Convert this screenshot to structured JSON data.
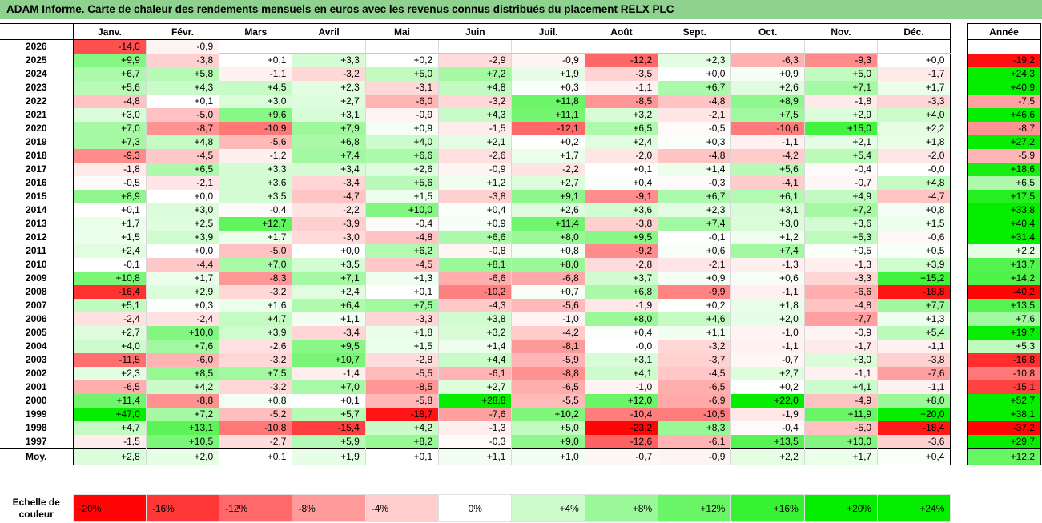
{
  "title": "ADAM Informe. Carte de chaleur des rendements mensuels en euros avec les revenus connus distribués du placement RELX PLC",
  "months": [
    "Janv.",
    "Févr.",
    "Mars",
    "Avril",
    "Mai",
    "Juin",
    "Juil.",
    "Août",
    "Sept.",
    "Oct.",
    "Nov.",
    "Déc."
  ],
  "annual_header": "Année",
  "avg_label": "Moy.",
  "scale_label": "Echelle de couleur",
  "chart_data": {
    "type": "heatmap",
    "title": "ADAM Informe. Carte de chaleur des rendements mensuels en euros avec les revenus connus distribués du placement RELX PLC",
    "x": [
      "Janv.",
      "Févr.",
      "Mars",
      "Avril",
      "Mai",
      "Juin",
      "Juil.",
      "Août",
      "Sept.",
      "Oct.",
      "Nov.",
      "Déc."
    ],
    "y": [
      "2026",
      "2025",
      "2024",
      "2023",
      "2022",
      "2021",
      "2020",
      "2019",
      "2018",
      "2017",
      "2016",
      "2015",
      "2014",
      "2013",
      "2012",
      "2011",
      "2010",
      "2009",
      "2008",
      "2007",
      "2006",
      "2005",
      "2004",
      "2003",
      "2002",
      "2001",
      "2000",
      "1999",
      "1998",
      "1997"
    ],
    "values": [
      [
        "-14,0",
        "-0,9",
        "",
        "",
        "",
        "",
        "",
        "",
        "",
        "",
        "",
        ""
      ],
      [
        "+9,9",
        "-3,8",
        "+0,1",
        "+3,3",
        "+0,2",
        "-2,9",
        "-0,9",
        "-12,2",
        "+2,3",
        "-6,3",
        "-9,3",
        "+0,0"
      ],
      [
        "+6,7",
        "+5,8",
        "-1,1",
        "-3,2",
        "+5,0",
        "+7,2",
        "+1,9",
        "-3,5",
        "+0,0",
        "+0,9",
        "+5,0",
        "-1,7"
      ],
      [
        "+5,6",
        "+4,3",
        "+4,5",
        "+2,3",
        "-3,1",
        "+4,8",
        "+0,3",
        "-1,1",
        "+6,7",
        "+2,6",
        "+7,1",
        "+1,7"
      ],
      [
        "-4,8",
        "+0,1",
        "+3,0",
        "+2,7",
        "-6,0",
        "-3,2",
        "+11,8",
        "-8,5",
        "-4,8",
        "+8,9",
        "-1,8",
        "-3,3"
      ],
      [
        "+3,0",
        "-5,0",
        "+9,6",
        "+3,1",
        "-0,9",
        "+4,3",
        "+11,1",
        "+3,2",
        "-2,1",
        "+7,5",
        "+2,9",
        "+4,0"
      ],
      [
        "+7,0",
        "-8,7",
        "-10,9",
        "+7,9",
        "+0,9",
        "-1,5",
        "-12,1",
        "+6,5",
        "-0,5",
        "-10,6",
        "+15,0",
        "+2,2"
      ],
      [
        "+7,3",
        "+4,8",
        "-5,6",
        "+6,8",
        "+4,0",
        "+2,1",
        "+0,2",
        "+2,4",
        "+0,3",
        "-1,1",
        "+2,1",
        "+1,8"
      ],
      [
        "-9,3",
        "-4,5",
        "-1,2",
        "+7,4",
        "+6,6",
        "-2,6",
        "+1,7",
        "-2,0",
        "-4,8",
        "-4,2",
        "+5,4",
        "-2,0"
      ],
      [
        "-1,8",
        "+6,5",
        "+3,3",
        "+3,4",
        "+2,6",
        "-0,9",
        "-2,2",
        "+0,1",
        "+1,4",
        "+5,6",
        "-0,4",
        "-0,0"
      ],
      [
        "-0,5",
        "-2,1",
        "+3,6",
        "-3,4",
        "+5,6",
        "+1,2",
        "+2,7",
        "+0,4",
        "-0,3",
        "-4,1",
        "-0,7",
        "+4,8"
      ],
      [
        "+8,9",
        "+0,0",
        "+3,5",
        "-4,7",
        "+1,5",
        "-3,8",
        "+9,1",
        "-9,1",
        "+6,7",
        "+6,1",
        "+4,9",
        "-4,7"
      ],
      [
        "+0,1",
        "+3,0",
        "-0,4",
        "-2,2",
        "+10,0",
        "+0,4",
        "+2,6",
        "+3,6",
        "+2,3",
        "+3,1",
        "+7,2",
        "+0,8"
      ],
      [
        "+1,7",
        "+2,5",
        "+12,7",
        "-3,9",
        "-0,4",
        "+0,9",
        "+11,4",
        "-3,8",
        "+7,4",
        "+3,0",
        "+3,6",
        "+1,5"
      ],
      [
        "+1,5",
        "+3,9",
        "+1,7",
        "-3,0",
        "-4,8",
        "+6,6",
        "+8,0",
        "+9,5",
        "-0,1",
        "+1,2",
        "+5,3",
        "-0,6"
      ],
      [
        "+2,4",
        "+0,0",
        "-5,0",
        "+0,0",
        "+6,2",
        "-0,8",
        "+0,8",
        "-9,2",
        "+0,6",
        "+7,4",
        "+0,5",
        "+0,5"
      ],
      [
        "-0,1",
        "-4,4",
        "+7,0",
        "+3,5",
        "-4,5",
        "+8,1",
        "+8,0",
        "-2,8",
        "-2,1",
        "-1,3",
        "-1,3",
        "+3,9"
      ],
      [
        "+10,8",
        "+1,7",
        "-8,3",
        "+7,1",
        "+1,3",
        "-6,6",
        "-6,8",
        "+3,7",
        "+0,9",
        "+0,6",
        "-3,3",
        "+15,2"
      ],
      [
        "-16,4",
        "+2,9",
        "-3,2",
        "+2,4",
        "+0,1",
        "-10,2",
        "+0,7",
        "+6,8",
        "-9,9",
        "-1,1",
        "-6,6",
        "-18,8"
      ],
      [
        "+5,1",
        "+0,3",
        "+1,6",
        "+6,4",
        "+7,5",
        "-4,3",
        "-5,6",
        "-1,9",
        "+0,2",
        "+1,8",
        "-4,8",
        "+7,7"
      ],
      [
        "-2,4",
        "-2,4",
        "+4,7",
        "+1,1",
        "-3,3",
        "+3,8",
        "-1,0",
        "+8,0",
        "+4,6",
        "+2,0",
        "-7,7",
        "+1,3"
      ],
      [
        "+2,7",
        "+10,0",
        "+3,9",
        "-3,4",
        "+1,8",
        "+3,2",
        "-4,2",
        "+0,4",
        "+1,1",
        "-1,0",
        "-0,9",
        "+5,4"
      ],
      [
        "+4,0",
        "+7,6",
        "-2,6",
        "+9,5",
        "+1,5",
        "+1,4",
        "-8,1",
        "-0,0",
        "-3,2",
        "-1,1",
        "-1,7",
        "-1,1"
      ],
      [
        "-11,5",
        "-6,0",
        "-3,2",
        "+10,7",
        "-2,8",
        "+4,4",
        "-5,9",
        "+3,1",
        "-3,7",
        "-0,7",
        "+3,0",
        "-3,8"
      ],
      [
        "+2,3",
        "+8,5",
        "+7,5",
        "-1,4",
        "-5,5",
        "-6,1",
        "-8,8",
        "+4,1",
        "-4,5",
        "+2,7",
        "-1,1",
        "-7,6"
      ],
      [
        "-6,5",
        "+4,2",
        "-3,2",
        "+7,0",
        "-8,5",
        "+2,7",
        "-6,5",
        "-1,0",
        "-6,5",
        "+0,2",
        "+4,1",
        "-1,1"
      ],
      [
        "+11,4",
        "-8,8",
        "+0,8",
        "+0,1",
        "-5,8",
        "+28,8",
        "-5,5",
        "+12,0",
        "-6,9",
        "+22,0",
        "-4,9",
        "+8,0"
      ],
      [
        "+47,0",
        "+7,2",
        "-5,2",
        "+5,7",
        "-18,7",
        "-7,6",
        "+10,2",
        "-10,4",
        "-10,5",
        "-1,9",
        "+11,9",
        "+20,0"
      ],
      [
        "+4,7",
        "+13,1",
        "-10,8",
        "-15,4",
        "+4,2",
        "-1,3",
        "+5,0",
        "-23,2",
        "+8,3",
        "-0,4",
        "-5,0",
        "-18,4"
      ],
      [
        "-1,5",
        "+10,5",
        "-2,7",
        "+5,9",
        "+8,2",
        "-0,3",
        "+9,0",
        "-12,6",
        "-6,1",
        "+13,5",
        "+10,0",
        "-3,6"
      ]
    ],
    "annual": [
      "",
      "-19,2",
      "+24,3",
      "+40,9",
      "-7,5",
      "+46,6",
      "-8,7",
      "+27,2",
      "-5,9",
      "+18,6",
      "+6,5",
      "+17,5",
      "+33,8",
      "+40,4",
      "+31,4",
      "+2,2",
      "+13,7",
      "+14,2",
      "-40,2",
      "+13,5",
      "+7,6",
      "+19,7",
      "+5,3",
      "-16,8",
      "-10,8",
      "-15,1",
      "+52,7",
      "+38,1",
      "-37,2",
      "+29,7"
    ],
    "monthly_avg": [
      "+2,8",
      "+2,0",
      "+0,1",
      "+1,9",
      "+0,1",
      "+1,1",
      "+1,0",
      "-0,7",
      "-0,9",
      "+2,2",
      "+1,7",
      "+0,4"
    ],
    "annual_avg": "+12,2",
    "scale": [
      "-20%",
      "-16%",
      "-12%",
      "-8%",
      "-4%",
      "0%",
      "+4%",
      "+8%",
      "+12%",
      "+16%",
      "+20%",
      "+24%"
    ],
    "colors": {
      "neg_max": "#ff0000",
      "zero": "#ffffff",
      "pos_max": "#00ee00"
    }
  }
}
